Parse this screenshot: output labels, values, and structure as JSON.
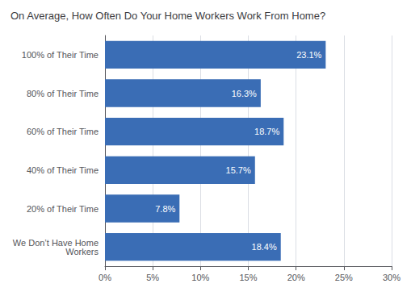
{
  "chart_data": {
    "type": "bar",
    "orientation": "horizontal",
    "title": "On Average, How Often Do Your Home Workers Work From Home?",
    "categories": [
      "We Don’t Have Home\nWorkers",
      "20% of Their Time",
      "40% of Their Time",
      "60% of Their Time",
      "80% of Their Time",
      "100% of Their Time"
    ],
    "values": [
      18.4,
      7.8,
      15.7,
      18.7,
      16.3,
      23.1
    ],
    "value_labels": [
      "18.4%",
      "7.8%",
      "15.7%",
      "18.7%",
      "16.3%",
      "23.1%"
    ],
    "data_labels": true,
    "color": "#3A6DB5",
    "xlim": [
      0,
      30
    ],
    "xticks": [
      {
        "value": 0,
        "label": "0%"
      },
      {
        "value": 5,
        "label": "5%"
      },
      {
        "value": 10,
        "label": "10%"
      },
      {
        "value": 15,
        "label": "15%"
      },
      {
        "value": 20,
        "label": "20%"
      },
      {
        "value": 25,
        "label": "25%"
      },
      {
        "value": 30,
        "label": "30%"
      }
    ],
    "grid": true
  }
}
